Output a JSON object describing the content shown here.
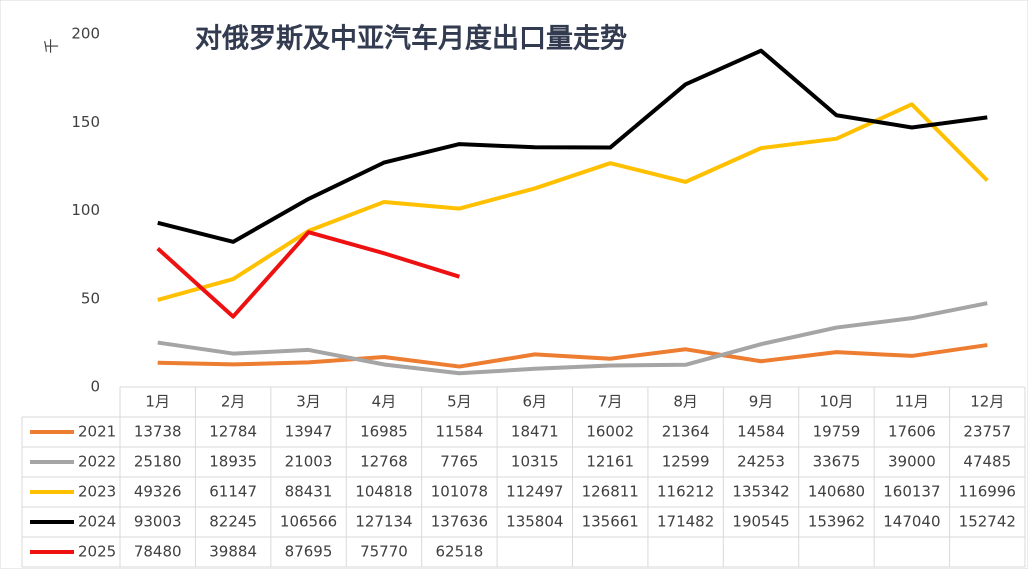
{
  "chart_data": {
    "type": "line",
    "title": "对俄罗斯及中亚汽车月度出口量走势",
    "y_label": "千",
    "categories": [
      "1月",
      "2月",
      "3月",
      "4月",
      "5月",
      "6月",
      "7月",
      "8月",
      "9月",
      "10月",
      "11月",
      "12月"
    ],
    "ylim": [
      0,
      200
    ],
    "yticks": [
      0,
      50,
      100,
      150,
      200
    ],
    "series": [
      {
        "name": "2021",
        "color": "#ed7d31",
        "values": [
          13.738,
          12.784,
          13.947,
          16.985,
          11.584,
          18.471,
          16.002,
          21.364,
          14.584,
          19.759,
          17.606,
          23.757
        ],
        "value_labels": [
          "13738",
          "12784",
          "13947",
          "16985",
          "11584",
          "18471",
          "16002",
          "21364",
          "14584",
          "19759",
          "17606",
          "23757"
        ]
      },
      {
        "name": "2022",
        "color": "#a5a5a5",
        "values": [
          25.18,
          18.935,
          21.003,
          12.768,
          7.765,
          10.315,
          12.161,
          12.599,
          24.253,
          33.675,
          39.0,
          47.485
        ],
        "value_labels": [
          "25180",
          "18935",
          "21003",
          "12768",
          "7765",
          "10315",
          "12161",
          "12599",
          "24253",
          "33675",
          "39000",
          "47485"
        ]
      },
      {
        "name": "2023",
        "color": "#ffc000",
        "values": [
          49.326,
          61.147,
          88.431,
          104.818,
          101.078,
          112.497,
          126.811,
          116.212,
          135.342,
          140.68,
          160.137,
          116.996
        ],
        "value_labels": [
          "49326",
          "61147",
          "88431",
          "104818",
          "101078",
          "112497",
          "126811",
          "116212",
          "135342",
          "140680",
          "160137",
          "116996"
        ]
      },
      {
        "name": "2024",
        "color": "#000000",
        "values": [
          93.003,
          82.245,
          106.566,
          127.134,
          137.636,
          135.804,
          135.661,
          171.482,
          190.545,
          153.962,
          147.04,
          152.742
        ],
        "value_labels": [
          "93003",
          "82245",
          "106566",
          "127134",
          "137636",
          "135804",
          "135661",
          "171482",
          "190545",
          "153962",
          "147040",
          "152742"
        ]
      },
      {
        "name": "2025",
        "color": "#ee1111",
        "values": [
          78.48,
          39.884,
          87.695,
          75.77,
          62.518,
          null,
          null,
          null,
          null,
          null,
          null,
          null
        ],
        "value_labels": [
          "78480",
          "39884",
          "87695",
          "75770",
          "62518",
          null,
          null,
          null,
          null,
          null,
          null,
          null
        ]
      }
    ]
  }
}
